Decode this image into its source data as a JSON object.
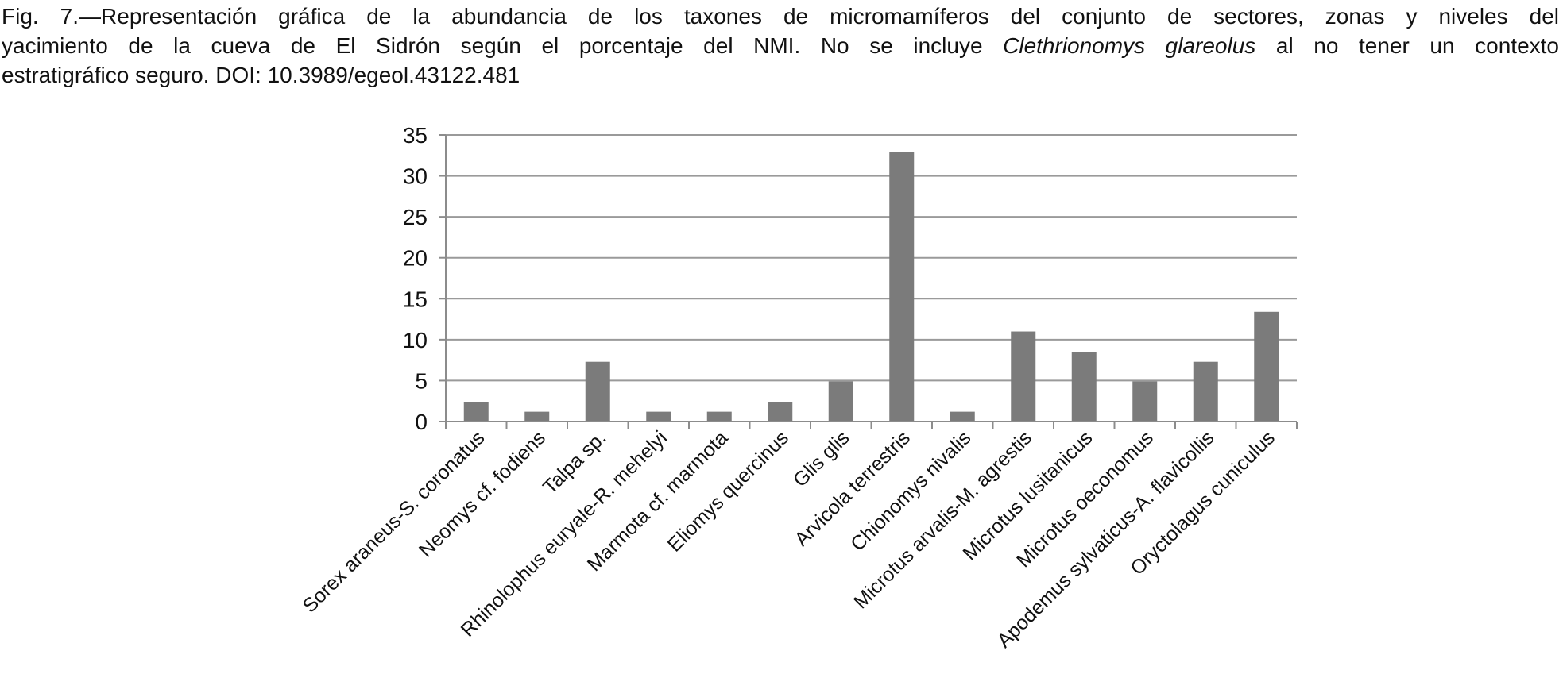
{
  "caption": {
    "line1": "Fig. 7.—Representación gráfica de la abundancia de los taxones de micromamíferos del conjunto de sectores, zonas y niveles del",
    "line2_pre": "yacimiento de la cueva de El Sidrón según el porcentaje del NMI. No se incluye ",
    "line2_italic": "Clethrionomys glareolus",
    "line2_post": " al no tener un contexto",
    "line3": "estratigráfico seguro. DOI: 10.3989/egeol.43122.481"
  },
  "chart_data": {
    "type": "bar",
    "categories": [
      "Sorex araneus-S. coronatus",
      "Neomys cf. fodiens",
      "Talpa sp.",
      "Rhinolophus euryale-R. mehelyi",
      "Marmota cf. marmota",
      "Eliomys quercinus",
      "Glis glis",
      "Arvicola terrestris",
      "Chionomys nivalis",
      "Microtus arvalis-M. agrestis",
      "Microtus lusitanicus",
      "Microtus oeconomus",
      "Apodemus sylvaticus-A. flavicollis",
      "Oryctolagus cuniculus"
    ],
    "values": [
      2.4,
      1.2,
      7.3,
      1.2,
      1.2,
      2.4,
      4.9,
      32.9,
      1.2,
      11.0,
      8.5,
      4.9,
      7.3,
      13.4
    ],
    "ylim": [
      0,
      35
    ],
    "yticks": [
      0,
      5,
      10,
      15,
      20,
      25,
      30,
      35
    ],
    "grid": true,
    "legend": "none",
    "colors": {
      "bar": "#7b7b7b",
      "grid": "#9a9a9a",
      "axis": "#8c8c8c"
    }
  }
}
